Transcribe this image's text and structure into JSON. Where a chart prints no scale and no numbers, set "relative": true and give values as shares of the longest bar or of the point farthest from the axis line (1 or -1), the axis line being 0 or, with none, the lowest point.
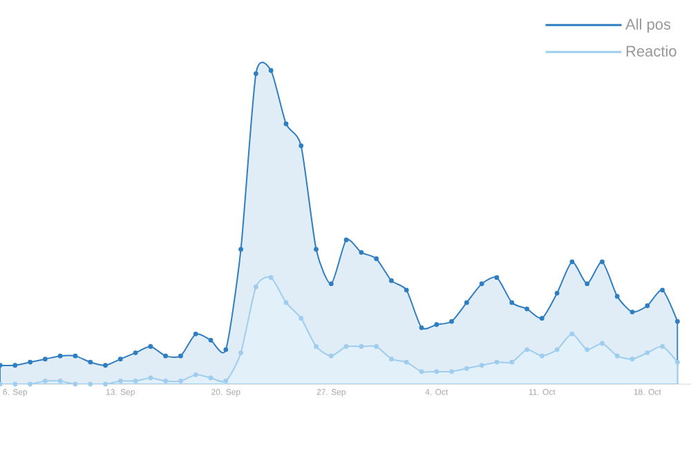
{
  "chart_data": {
    "type": "area",
    "relative": true,
    "marker": "circle",
    "legend": "top right",
    "categories": [
      null,
      "6. Sep",
      null,
      null,
      null,
      null,
      null,
      null,
      "13. Sep",
      null,
      null,
      null,
      null,
      null,
      null,
      "20. Sep",
      null,
      null,
      null,
      null,
      null,
      null,
      "27. Sep",
      null,
      null,
      null,
      null,
      null,
      null,
      "4. Oct",
      null,
      null,
      null,
      null,
      null,
      null,
      "11. Oct",
      null,
      null,
      null,
      null,
      null,
      null,
      "18. Oct",
      null,
      null
    ],
    "series": [
      {
        "name": "All pos",
        "color": "#2f7ec1",
        "values": [
          0.06,
          0.06,
          0.07,
          0.08,
          0.09,
          0.09,
          0.07,
          0.06,
          0.08,
          0.1,
          0.12,
          0.09,
          0.09,
          0.16,
          0.14,
          0.11,
          0.43,
          0.99,
          1,
          0.83,
          0.76,
          0.43,
          0.32,
          0.46,
          0.42,
          0.4,
          0.33,
          0.3,
          0.18,
          0.19,
          0.2,
          0.26,
          0.32,
          0.34,
          0.26,
          0.24,
          0.21,
          0.29,
          0.39,
          0.32,
          0.39,
          0.28,
          0.23,
          0.25,
          0.3,
          0.2
        ]
      },
      {
        "name": "Reactio",
        "color": "#9fcdee",
        "values": [
          0.0,
          0.0,
          0.0,
          0.01,
          0.01,
          0.0,
          0.0,
          0.0,
          0.01,
          0.01,
          0.02,
          0.01,
          0.01,
          0.03,
          0.02,
          0.01,
          0.1,
          0.31,
          0.34,
          0.26,
          0.21,
          0.12,
          0.09,
          0.12,
          0.12,
          0.12,
          0.08,
          0.07,
          0.04,
          0.04,
          0.04,
          0.05,
          0.06,
          0.07,
          0.07,
          0.11,
          0.09,
          0.11,
          0.16,
          0.11,
          0.13,
          0.09,
          0.08,
          0.1,
          0.12,
          0.07
        ]
      }
    ]
  }
}
